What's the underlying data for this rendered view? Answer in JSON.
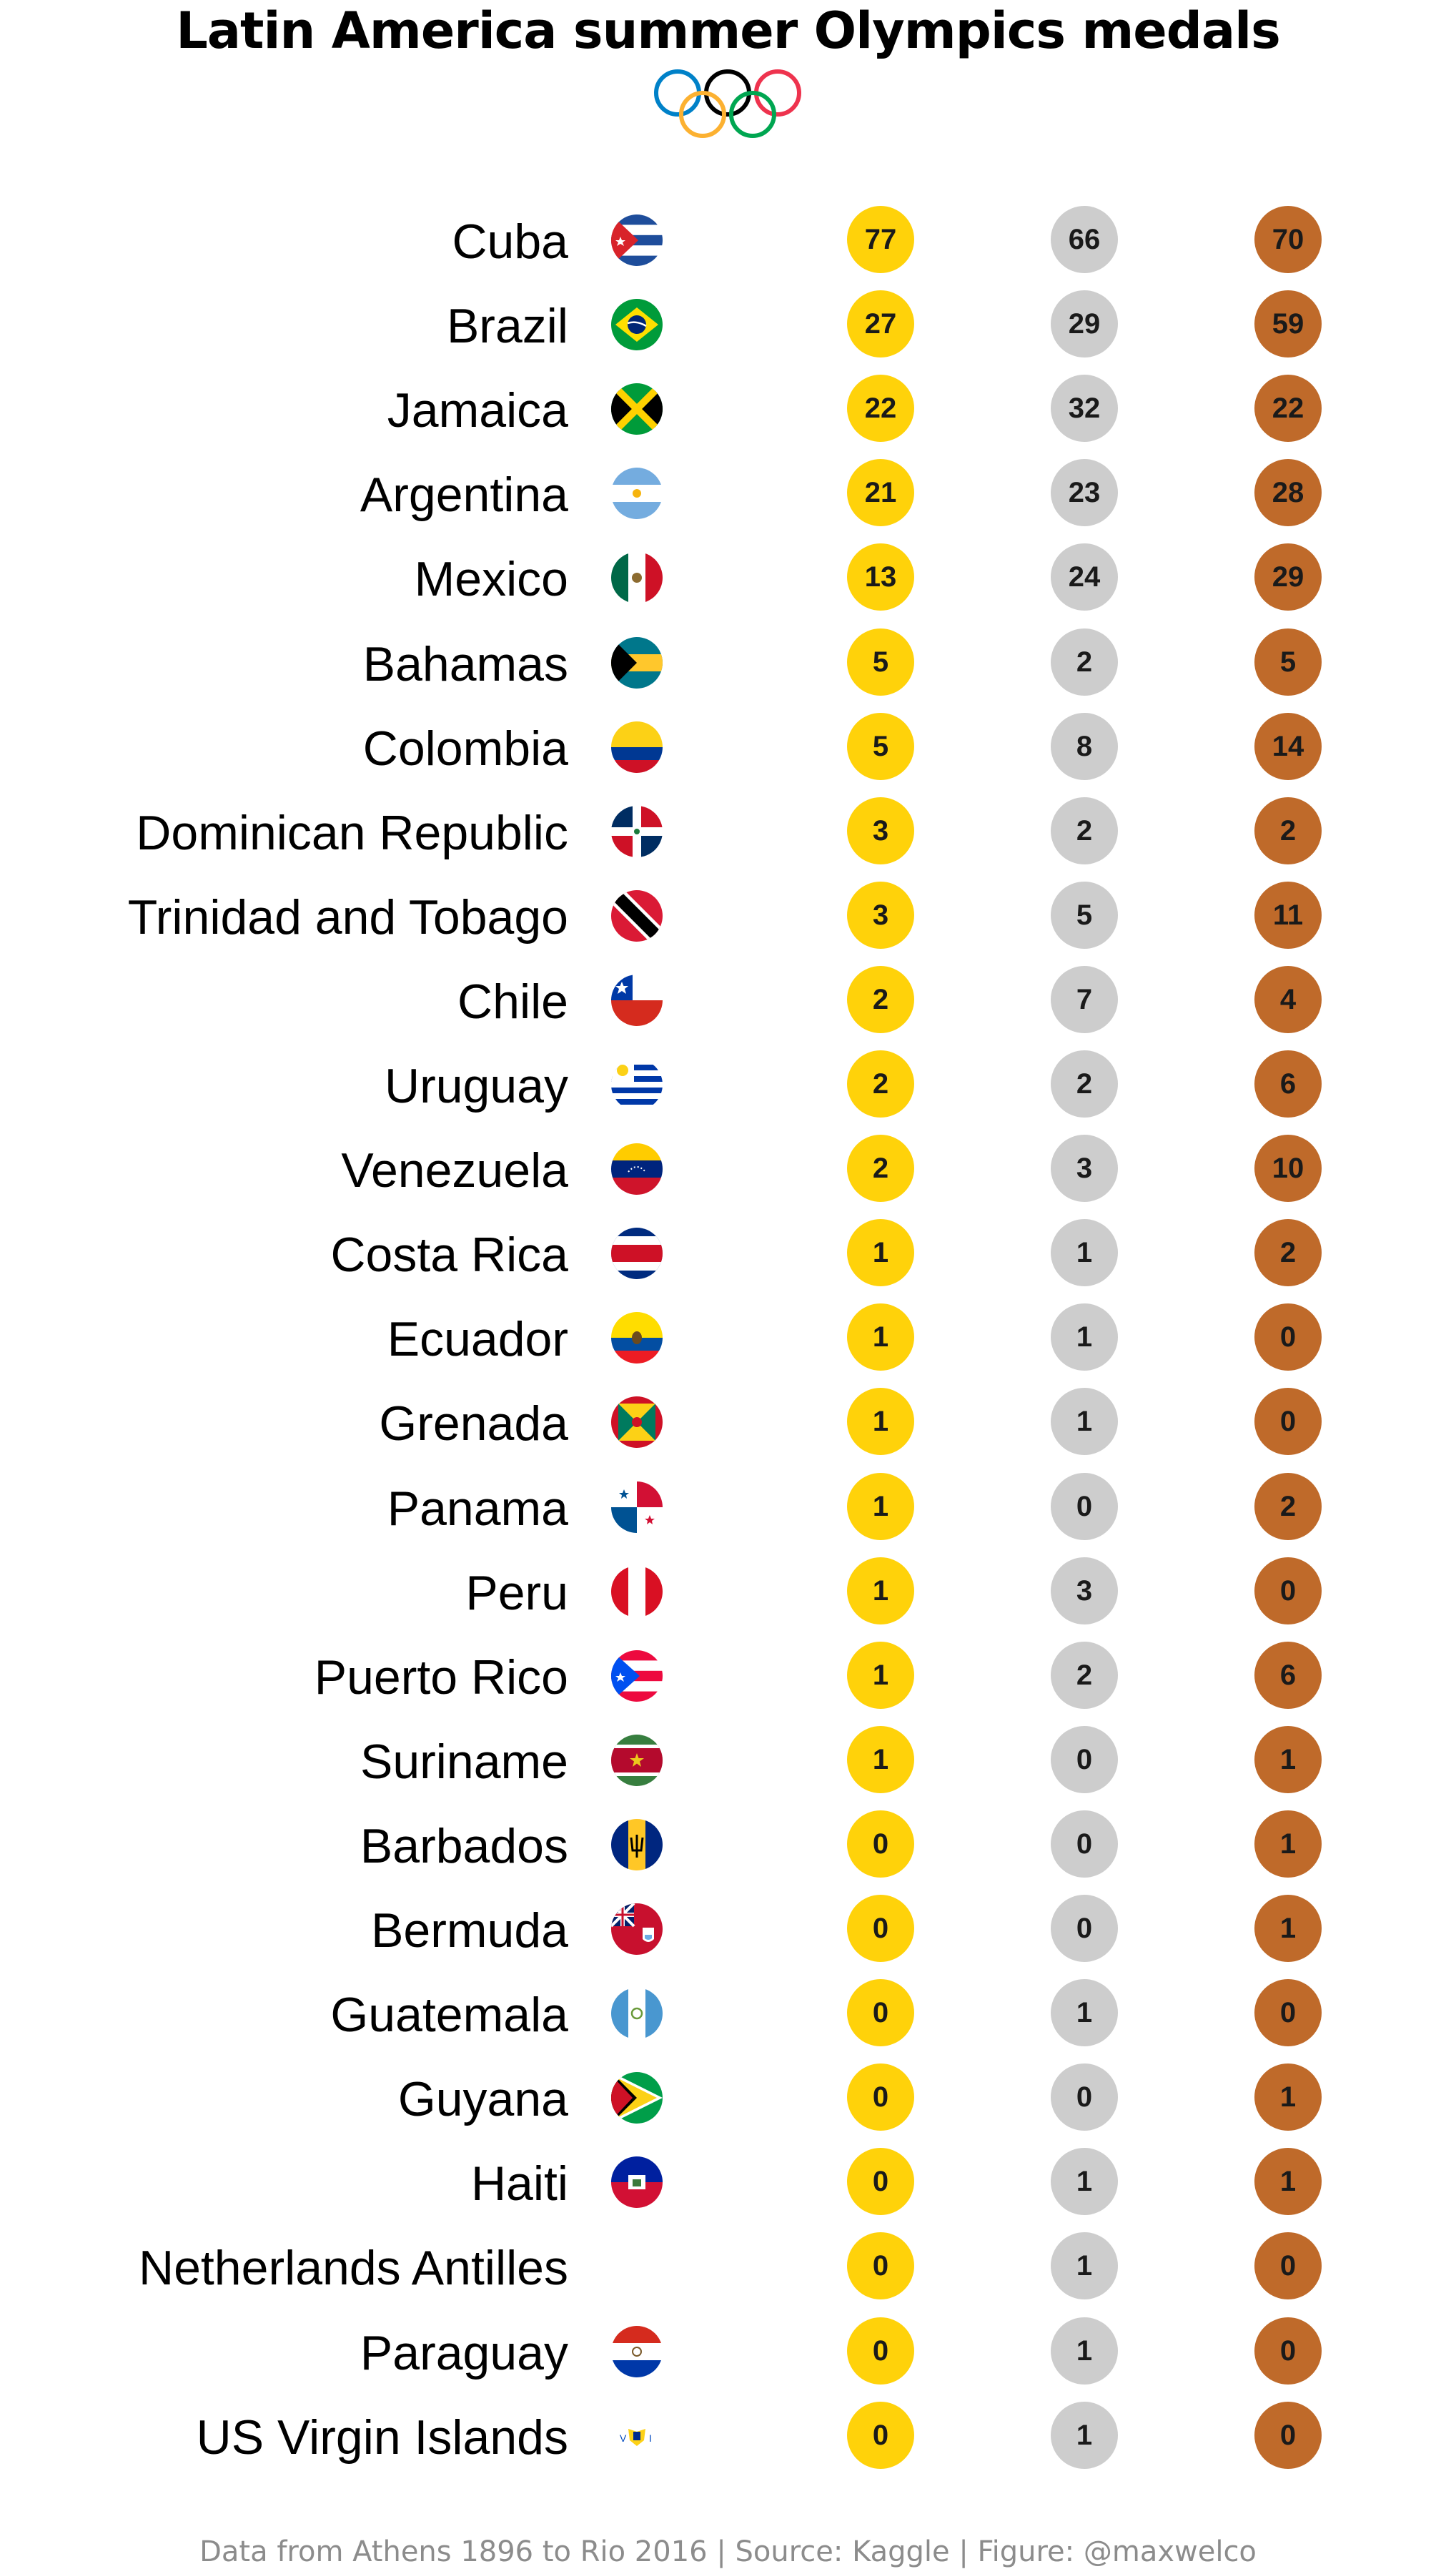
{
  "header": {
    "title": "Latin America summer Olympics medals"
  },
  "chart_data": {
    "type": "table",
    "title": "Latin America summer Olympics medals",
    "columns": [
      "gold",
      "silver",
      "bronze"
    ],
    "colors": {
      "gold": "#FFD20A",
      "silver": "#CDCDCD",
      "bronze": "#BF6A2A"
    },
    "rows": [
      {
        "country": "Cuba",
        "flag": "cuba-flag-icon",
        "gold": 77,
        "silver": 66,
        "bronze": 70
      },
      {
        "country": "Brazil",
        "flag": "brazil-flag-icon",
        "gold": 27,
        "silver": 29,
        "bronze": 59
      },
      {
        "country": "Jamaica",
        "flag": "jamaica-flag-icon",
        "gold": 22,
        "silver": 32,
        "bronze": 22
      },
      {
        "country": "Argentina",
        "flag": "argentina-flag-icon",
        "gold": 21,
        "silver": 23,
        "bronze": 28
      },
      {
        "country": "Mexico",
        "flag": "mexico-flag-icon",
        "gold": 13,
        "silver": 24,
        "bronze": 29
      },
      {
        "country": "Bahamas",
        "flag": "bahamas-flag-icon",
        "gold": 5,
        "silver": 2,
        "bronze": 5
      },
      {
        "country": "Colombia",
        "flag": "colombia-flag-icon",
        "gold": 5,
        "silver": 8,
        "bronze": 14
      },
      {
        "country": "Dominican Republic",
        "flag": "dominican-republic-flag-icon",
        "gold": 3,
        "silver": 2,
        "bronze": 2
      },
      {
        "country": "Trinidad and Tobago",
        "flag": "trinidad-and-tobago-flag-icon",
        "gold": 3,
        "silver": 5,
        "bronze": 11
      },
      {
        "country": "Chile",
        "flag": "chile-flag-icon",
        "gold": 2,
        "silver": 7,
        "bronze": 4
      },
      {
        "country": "Uruguay",
        "flag": "uruguay-flag-icon",
        "gold": 2,
        "silver": 2,
        "bronze": 6
      },
      {
        "country": "Venezuela",
        "flag": "venezuela-flag-icon",
        "gold": 2,
        "silver": 3,
        "bronze": 10
      },
      {
        "country": "Costa Rica",
        "flag": "costa-rica-flag-icon",
        "gold": 1,
        "silver": 1,
        "bronze": 2
      },
      {
        "country": "Ecuador",
        "flag": "ecuador-flag-icon",
        "gold": 1,
        "silver": 1,
        "bronze": 0
      },
      {
        "country": "Grenada",
        "flag": "grenada-flag-icon",
        "gold": 1,
        "silver": 1,
        "bronze": 0
      },
      {
        "country": "Panama",
        "flag": "panama-flag-icon",
        "gold": 1,
        "silver": 0,
        "bronze": 2
      },
      {
        "country": "Peru",
        "flag": "peru-flag-icon",
        "gold": 1,
        "silver": 3,
        "bronze": 0
      },
      {
        "country": "Puerto Rico",
        "flag": "puerto-rico-flag-icon",
        "gold": 1,
        "silver": 2,
        "bronze": 6
      },
      {
        "country": "Suriname",
        "flag": "suriname-flag-icon",
        "gold": 1,
        "silver": 0,
        "bronze": 1
      },
      {
        "country": "Barbados",
        "flag": "barbados-flag-icon",
        "gold": 0,
        "silver": 0,
        "bronze": 1
      },
      {
        "country": "Bermuda",
        "flag": "bermuda-flag-icon",
        "gold": 0,
        "silver": 0,
        "bronze": 1
      },
      {
        "country": "Guatemala",
        "flag": "guatemala-flag-icon",
        "gold": 0,
        "silver": 1,
        "bronze": 0
      },
      {
        "country": "Guyana",
        "flag": "guyana-flag-icon",
        "gold": 0,
        "silver": 0,
        "bronze": 1
      },
      {
        "country": "Haiti",
        "flag": "haiti-flag-icon",
        "gold": 0,
        "silver": 1,
        "bronze": 1
      },
      {
        "country": "Netherlands Antilles",
        "flag": "",
        "gold": 0,
        "silver": 1,
        "bronze": 0
      },
      {
        "country": "Paraguay",
        "flag": "paraguay-flag-icon",
        "gold": 0,
        "silver": 1,
        "bronze": 0
      },
      {
        "country": "US Virgin Islands",
        "flag": "us-virgin-islands-flag-icon",
        "gold": 0,
        "silver": 1,
        "bronze": 0
      }
    ]
  },
  "footer": {
    "caption": "Data from Athens 1896 to Rio 2016 | Source: Kaggle | Figure: @maxwelco"
  }
}
